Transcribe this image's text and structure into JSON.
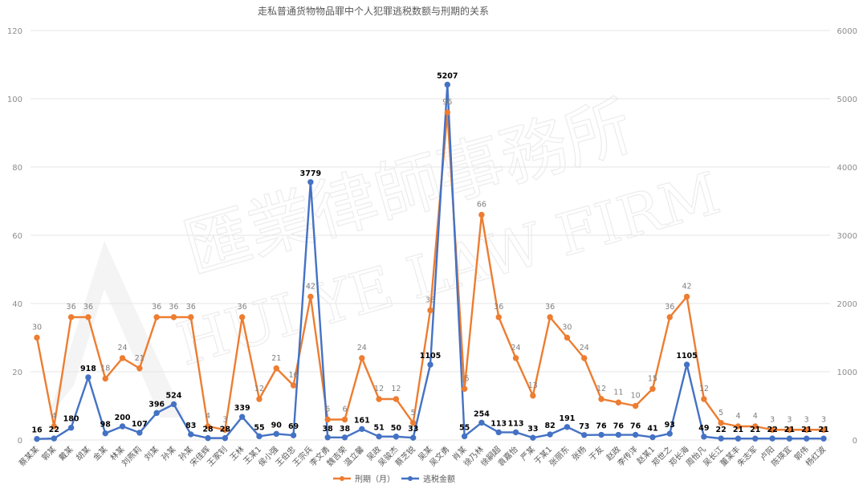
{
  "chart_data": {
    "type": "line",
    "title": "走私普通货物物品罪中个人犯罪逃税数额与刑期的关系",
    "categories": [
      "蔡某某",
      "郭某",
      "戴某",
      "胡某",
      "金某",
      "林某",
      "刘燕莉",
      "刘某",
      "孙某",
      "孙某",
      "宋佳辉",
      "王家钊",
      "王林",
      "王某1",
      "侯小强",
      "王伯忠",
      "王宗兵",
      "李文勇",
      "魏吉荣",
      "温立馨",
      "吴政",
      "吴骏杰",
      "蔡芝锐",
      "吴某",
      "吴文勇",
      "肖某",
      "徐乃林",
      "徐嗣超",
      "袁嘉怡",
      "严某",
      "于某1",
      "张丽东",
      "张杨",
      "于友",
      "赵政",
      "李传洋",
      "赵某1",
      "郑世之",
      "郑长海",
      "周怡凡",
      "吴长江",
      "董某丰",
      "朱志军",
      "卢阳",
      "陈瑛宜",
      "郭伟",
      "杨红波"
    ],
    "y_left": {
      "min": 0,
      "max": 120,
      "step": 20
    },
    "y_right": {
      "min": 0,
      "max": 6000,
      "step": 1000
    },
    "series": [
      {
        "name": "刑期（月）",
        "axis": "left",
        "color": "#ed7d31",
        "values": [
          30,
          4,
          36,
          36,
          18,
          24,
          21,
          36,
          36,
          36,
          4,
          3,
          36,
          12,
          21,
          16,
          42,
          6,
          6,
          24,
          12,
          12,
          5,
          38,
          96,
          15,
          66,
          36,
          24,
          13,
          36,
          30,
          24,
          12,
          11,
          10,
          15,
          36,
          42,
          12,
          5,
          4,
          4,
          3,
          3,
          3,
          3
        ]
      },
      {
        "name": "逃税金额",
        "axis": "right",
        "color": "#4472c4",
        "values": [
          16,
          22,
          180,
          918,
          98,
          200,
          107,
          396,
          524,
          83,
          28,
          28,
          339,
          55,
          90,
          69,
          3779,
          38,
          38,
          161,
          51,
          50,
          33,
          1105,
          5207,
          55,
          254,
          113,
          113,
          33,
          82,
          191,
          73,
          76,
          76,
          76,
          41,
          93,
          1105,
          49,
          22,
          21,
          21,
          22,
          21,
          21,
          21
        ]
      }
    ],
    "legend_position": "bottom",
    "grid": true
  },
  "watermark": {
    "cn": "匯業律師事務所",
    "en": "HUI YE LAW FIRM"
  }
}
